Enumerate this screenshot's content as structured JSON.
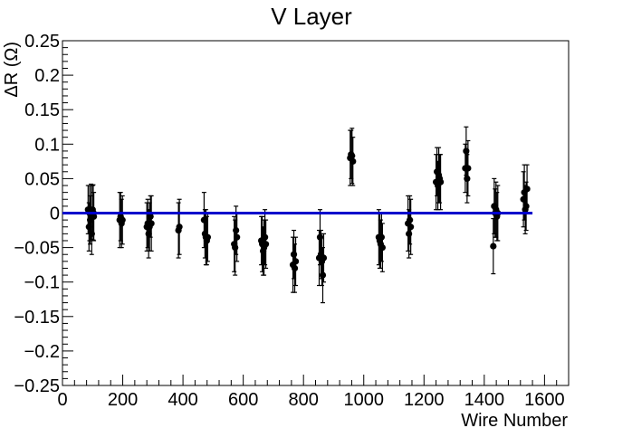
{
  "chart_data": {
    "type": "scatter",
    "title": "V Layer",
    "xlabel": "Wire Number",
    "ylabel": "ΔR (Ω)",
    "xlim": [
      0,
      1680
    ],
    "ylim": [
      -0.25,
      0.25
    ],
    "x_ticks": [
      0,
      200,
      400,
      600,
      800,
      1000,
      1200,
      1400,
      1600
    ],
    "x_tick_labels": [
      "0",
      "200",
      "400",
      "600",
      "800",
      "1000",
      "1200",
      "1400",
      "1600"
    ],
    "y_ticks": [
      -0.25,
      -0.2,
      -0.15,
      -0.1,
      -0.05,
      0,
      0.05,
      0.1,
      0.15,
      0.2,
      0.25
    ],
    "y_tick_labels": [
      "−0.25",
      "−0.2",
      "−0.15",
      "−0.1",
      "−0.05",
      "0",
      "0.05",
      "0.1",
      "0.15",
      "0.2",
      "0.25"
    ],
    "grid": false,
    "reference_line": {
      "x": [
        0,
        1560
      ],
      "y": 0,
      "color": "#0000cc"
    },
    "marker_color": "#000000",
    "points": [
      {
        "x": 85,
        "y": 0.005,
        "err": 0.035
      },
      {
        "x": 88,
        "y": -0.02,
        "err": 0.035
      },
      {
        "x": 90,
        "y": 0.0,
        "err": 0.04
      },
      {
        "x": 92,
        "y": -0.01,
        "err": 0.035
      },
      {
        "x": 95,
        "y": 0.002,
        "err": 0.04
      },
      {
        "x": 97,
        "y": -0.03,
        "err": 0.03
      },
      {
        "x": 100,
        "y": 0.005,
        "err": 0.035
      },
      {
        "x": 102,
        "y": 0.001,
        "err": 0.04
      },
      {
        "x": 104,
        "y": -0.005,
        "err": 0.035
      },
      {
        "x": 190,
        "y": -0.01,
        "err": 0.04
      },
      {
        "x": 193,
        "y": -0.005,
        "err": 0.035
      },
      {
        "x": 196,
        "y": -0.015,
        "err": 0.035
      },
      {
        "x": 199,
        "y": -0.01,
        "err": 0.035
      },
      {
        "x": 280,
        "y": -0.02,
        "err": 0.035
      },
      {
        "x": 283,
        "y": -0.015,
        "err": 0.035
      },
      {
        "x": 286,
        "y": -0.03,
        "err": 0.035
      },
      {
        "x": 289,
        "y": -0.02,
        "err": 0.035
      },
      {
        "x": 292,
        "y": -0.005,
        "err": 0.03
      },
      {
        "x": 295,
        "y": -0.015,
        "err": 0.04
      },
      {
        "x": 385,
        "y": -0.025,
        "err": 0.04
      },
      {
        "x": 388,
        "y": -0.02,
        "err": 0.04
      },
      {
        "x": 470,
        "y": -0.01,
        "err": 0.04
      },
      {
        "x": 473,
        "y": -0.03,
        "err": 0.035
      },
      {
        "x": 476,
        "y": -0.035,
        "err": 0.04
      },
      {
        "x": 479,
        "y": -0.04,
        "err": 0.035
      },
      {
        "x": 482,
        "y": -0.035,
        "err": 0.035
      },
      {
        "x": 570,
        "y": -0.045,
        "err": 0.04
      },
      {
        "x": 573,
        "y": -0.05,
        "err": 0.04
      },
      {
        "x": 576,
        "y": -0.025,
        "err": 0.035
      },
      {
        "x": 579,
        "y": -0.035,
        "err": 0.035
      },
      {
        "x": 660,
        "y": -0.04,
        "err": 0.035
      },
      {
        "x": 663,
        "y": -0.045,
        "err": 0.04
      },
      {
        "x": 666,
        "y": -0.055,
        "err": 0.035
      },
      {
        "x": 669,
        "y": -0.05,
        "err": 0.04
      },
      {
        "x": 672,
        "y": -0.035,
        "err": 0.04
      },
      {
        "x": 675,
        "y": -0.045,
        "err": 0.035
      },
      {
        "x": 765,
        "y": -0.075,
        "err": 0.04
      },
      {
        "x": 768,
        "y": -0.06,
        "err": 0.035
      },
      {
        "x": 771,
        "y": -0.08,
        "err": 0.035
      },
      {
        "x": 774,
        "y": -0.07,
        "err": 0.035
      },
      {
        "x": 852,
        "y": -0.065,
        "err": 0.04
      },
      {
        "x": 855,
        "y": -0.035,
        "err": 0.04
      },
      {
        "x": 858,
        "y": -0.06,
        "err": 0.035
      },
      {
        "x": 861,
        "y": -0.07,
        "err": 0.035
      },
      {
        "x": 864,
        "y": -0.09,
        "err": 0.04
      },
      {
        "x": 867,
        "y": -0.065,
        "err": 0.035
      },
      {
        "x": 955,
        "y": 0.08,
        "err": 0.04
      },
      {
        "x": 958,
        "y": 0.085,
        "err": 0.035
      },
      {
        "x": 961,
        "y": 0.083,
        "err": 0.04
      },
      {
        "x": 964,
        "y": 0.075,
        "err": 0.035
      },
      {
        "x": 1050,
        "y": -0.035,
        "err": 0.04
      },
      {
        "x": 1053,
        "y": -0.04,
        "err": 0.04
      },
      {
        "x": 1056,
        "y": -0.045,
        "err": 0.035
      },
      {
        "x": 1059,
        "y": -0.035,
        "err": 0.035
      },
      {
        "x": 1062,
        "y": -0.05,
        "err": 0.035
      },
      {
        "x": 1147,
        "y": -0.015,
        "err": 0.04
      },
      {
        "x": 1150,
        "y": -0.03,
        "err": 0.035
      },
      {
        "x": 1153,
        "y": -0.01,
        "err": 0.035
      },
      {
        "x": 1156,
        "y": -0.02,
        "err": 0.04
      },
      {
        "x": 1240,
        "y": 0.045,
        "err": 0.04
      },
      {
        "x": 1243,
        "y": 0.06,
        "err": 0.035
      },
      {
        "x": 1246,
        "y": 0.04,
        "err": 0.035
      },
      {
        "x": 1249,
        "y": 0.055,
        "err": 0.04
      },
      {
        "x": 1252,
        "y": 0.05,
        "err": 0.035
      },
      {
        "x": 1255,
        "y": 0.045,
        "err": 0.04
      },
      {
        "x": 1337,
        "y": 0.065,
        "err": 0.035
      },
      {
        "x": 1340,
        "y": 0.09,
        "err": 0.035
      },
      {
        "x": 1343,
        "y": 0.05,
        "err": 0.035
      },
      {
        "x": 1346,
        "y": 0.065,
        "err": 0.04
      },
      {
        "x": 1430,
        "y": -0.048,
        "err": 0.04
      },
      {
        "x": 1433,
        "y": 0.01,
        "err": 0.04
      },
      {
        "x": 1436,
        "y": 0.0,
        "err": 0.035
      },
      {
        "x": 1439,
        "y": 0.005,
        "err": 0.04
      },
      {
        "x": 1442,
        "y": -0.005,
        "err": 0.035
      },
      {
        "x": 1445,
        "y": 0.0,
        "err": 0.04
      },
      {
        "x": 1530,
        "y": 0.02,
        "err": 0.04
      },
      {
        "x": 1533,
        "y": 0.03,
        "err": 0.04
      },
      {
        "x": 1536,
        "y": 0.005,
        "err": 0.035
      },
      {
        "x": 1539,
        "y": 0.01,
        "err": 0.035
      },
      {
        "x": 1542,
        "y": 0.035,
        "err": 0.035
      }
    ]
  }
}
